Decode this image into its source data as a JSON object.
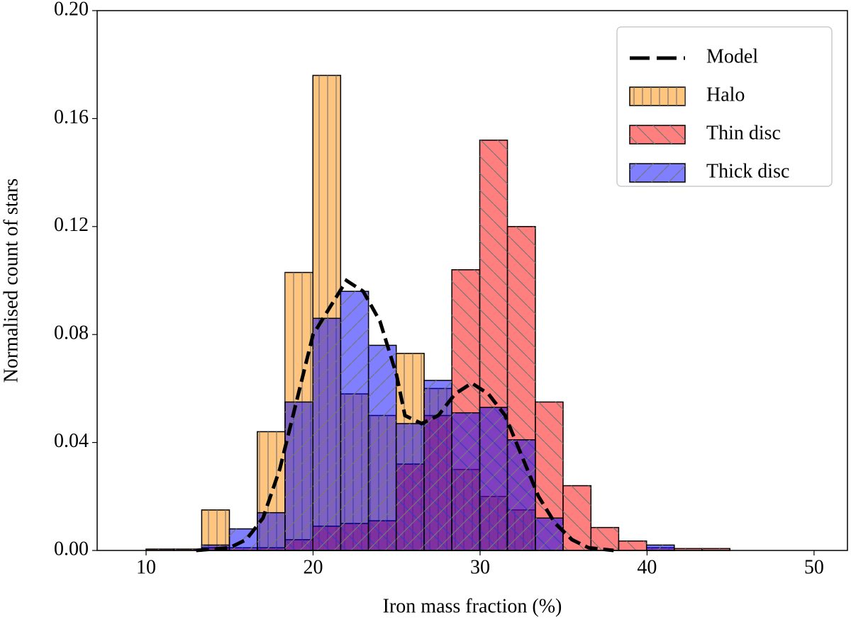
{
  "chart_data": {
    "type": "histogram",
    "xlabel": "Iron mass fraction (%)",
    "ylabel": "Normalised count of stars",
    "xlim": [
      7.07,
      52.0
    ],
    "ylim": [
      0,
      0.2
    ],
    "xticks": [
      10,
      20,
      30,
      40,
      50
    ],
    "yticks": [
      {
        "value": 0,
        "label": "0.00"
      },
      {
        "value": 0.04,
        "label": "0.04"
      },
      {
        "value": 0.08,
        "label": "0.08"
      },
      {
        "value": 0.12,
        "label": "0.12"
      },
      {
        "value": 0.16,
        "label": "0.16"
      },
      {
        "value": 0.2,
        "label": "0.20"
      }
    ],
    "legend": "upper right",
    "bins": [
      8.33,
      10.0,
      11.66,
      13.33,
      14.99,
      16.66,
      18.32,
      19.99,
      21.65,
      23.32,
      24.98,
      26.65,
      28.31,
      29.98,
      31.64,
      33.31,
      34.97,
      36.64,
      38.3,
      39.97,
      41.63,
      43.3,
      44.96
    ],
    "series": [
      {
        "name": "Halo",
        "color": "#ff8c00",
        "hatch": "|",
        "values": [
          0,
          0,
          0,
          0.015,
          0,
          0.044,
          0.103,
          0.176,
          0.058,
          0.05,
          0.073,
          0.06,
          0.03,
          0.02,
          0.015,
          0,
          0,
          0,
          0,
          0,
          0,
          0
        ]
      },
      {
        "name": "Thin disc",
        "color": "#ff0000",
        "hatch": "\\",
        "values": [
          0,
          0.0005,
          0.0005,
          0.001,
          0.001,
          0.001,
          0.004,
          0.009,
          0.01,
          0.011,
          0.032,
          0.05,
          0.104,
          0.152,
          0.12,
          0.055,
          0.024,
          0.0085,
          0.0035,
          0.001,
          0.0007,
          0.0007
        ]
      },
      {
        "name": "Thick disc",
        "color": "#0000ff",
        "hatch": "/",
        "values": [
          0,
          0,
          0,
          0.002,
          0.008,
          0.014,
          0.055,
          0.086,
          0.096,
          0.076,
          0.047,
          0.063,
          0.051,
          0.053,
          0.041,
          0.012,
          0,
          0,
          0,
          0.002,
          0,
          0
        ]
      }
    ],
    "model": {
      "name": "Model",
      "color": "#000000",
      "x": [
        13,
        15,
        16,
        17,
        18,
        19,
        20,
        21,
        22,
        23,
        24,
        25,
        25.5,
        26.5,
        27.5,
        28.5,
        29.5,
        30.5,
        31.5,
        32.5,
        33.5,
        34.5,
        35.5,
        36.5,
        38
      ],
      "values": [
        0,
        0.001,
        0.004,
        0.012,
        0.03,
        0.055,
        0.08,
        0.09,
        0.1,
        0.096,
        0.085,
        0.065,
        0.05,
        0.047,
        0.05,
        0.058,
        0.062,
        0.058,
        0.05,
        0.035,
        0.02,
        0.01,
        0.004,
        0.001,
        0
      ]
    }
  }
}
